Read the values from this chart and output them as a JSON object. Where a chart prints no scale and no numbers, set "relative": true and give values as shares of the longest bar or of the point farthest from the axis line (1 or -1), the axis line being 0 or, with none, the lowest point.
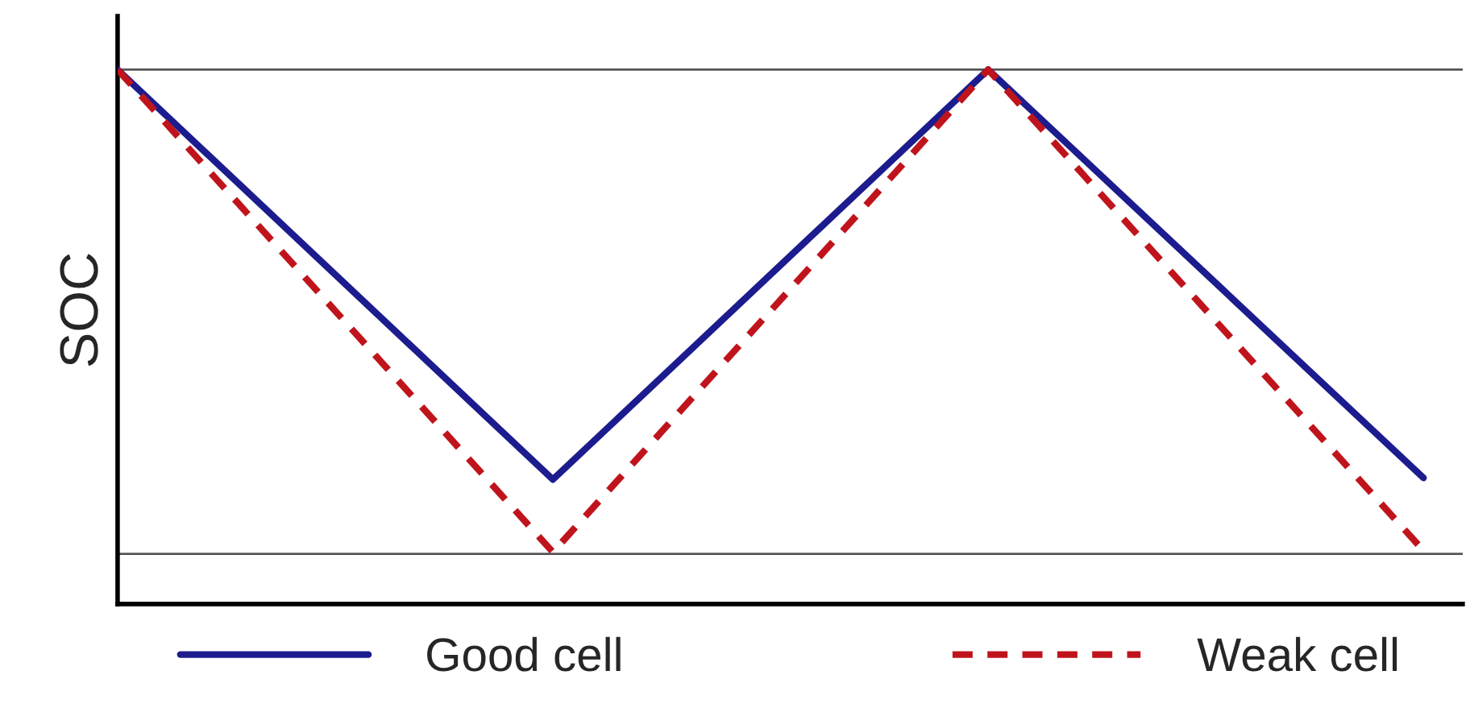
{
  "chart_data": {
    "type": "line",
    "relative": true,
    "ylabel": "SOC",
    "categories": [
      null,
      null,
      null,
      null
    ],
    "series": [
      {
        "name": "Good cell",
        "color": "#1c1c8e",
        "line_style": "solid",
        "values": [
          1,
          0.233,
          1,
          0.236
        ]
      },
      {
        "name": "Weak cell",
        "color": "#c0141c",
        "line_style": "dashed",
        "values": [
          1,
          0.097,
          1,
          0.1
        ]
      }
    ],
    "ref_lines": [
      {
        "axis": "y",
        "value": 1,
        "color": "#555555"
      },
      {
        "axis": "y",
        "value": 0.094,
        "color": "#555555"
      }
    ],
    "legend": "bottom",
    "grid": false
  }
}
